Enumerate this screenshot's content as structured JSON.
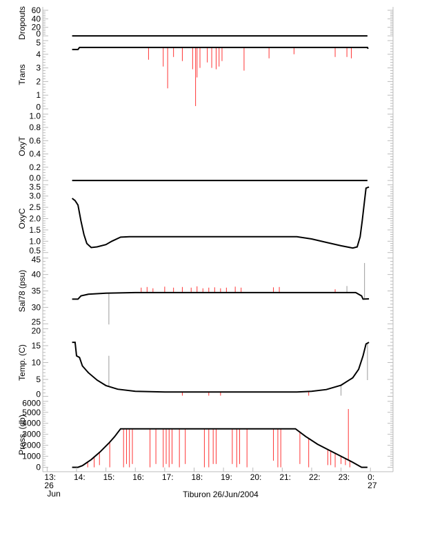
{
  "chart_data": {
    "type": "line",
    "title": "Tiburon 26/Jun/2004",
    "xlabel": "Tiburon 26/Jun/2004",
    "xlim_hours": [
      12.85,
      24.77
    ],
    "xticks": [
      {
        "h": 13,
        "label": "13:",
        "sub": "26",
        "sub2": "Jun"
      },
      {
        "h": 14,
        "label": "14:"
      },
      {
        "h": 15,
        "label": "15:"
      },
      {
        "h": 16,
        "label": "16:"
      },
      {
        "h": 17,
        "label": "17:"
      },
      {
        "h": 18,
        "label": "18:"
      },
      {
        "h": 19,
        "label": "19:"
      },
      {
        "h": 20,
        "label": "20:"
      },
      {
        "h": 21,
        "label": "21:"
      },
      {
        "h": 22,
        "label": "22:"
      },
      {
        "h": 23,
        "label": "23:"
      },
      {
        "h": 24,
        "label": "0:",
        "sub": "27"
      }
    ],
    "panels": [
      {
        "name": "dropouts",
        "ylabel": "Dropouts",
        "ylim": [
          -8,
          68
        ],
        "ticks": [
          0,
          20,
          40,
          60
        ],
        "tick_labels": [
          "0",
          "20",
          "40",
          "60"
        ],
        "line": [
          [
            13.85,
            0
          ],
          [
            23.9,
            0
          ]
        ],
        "spikes": []
      },
      {
        "name": "trans",
        "ylabel": "Trans",
        "ylim": [
          -0.1,
          5.1
        ],
        "ticks": [
          0,
          1,
          2,
          3,
          4,
          5
        ],
        "tick_labels": [
          "0",
          "1",
          "2",
          "3",
          "4",
          "5"
        ],
        "line": [
          [
            13.85,
            4.35
          ],
          [
            14.05,
            4.35
          ],
          [
            14.1,
            4.5
          ],
          [
            23.9,
            4.5
          ],
          [
            23.92,
            4.4
          ]
        ],
        "spikes": [
          [
            16.45,
            3.6
          ],
          [
            16.95,
            3.1
          ],
          [
            17.1,
            1.5
          ],
          [
            17.3,
            3.8
          ],
          [
            17.6,
            3.5
          ],
          [
            17.95,
            2.9
          ],
          [
            18.05,
            0.2
          ],
          [
            18.1,
            2.3
          ],
          [
            18.2,
            3.0
          ],
          [
            18.45,
            3.4
          ],
          [
            18.6,
            3.0
          ],
          [
            18.75,
            2.9
          ],
          [
            18.85,
            3.1
          ],
          [
            18.95,
            3.5
          ],
          [
            19.7,
            2.8
          ],
          [
            20.55,
            3.7
          ],
          [
            21.4,
            4.0
          ],
          [
            22.8,
            3.8
          ],
          [
            23.2,
            3.8
          ],
          [
            23.35,
            3.7
          ]
        ]
      },
      {
        "name": "oxyt",
        "ylabel": "OxyT",
        "ylim": [
          -0.03,
          1.06
        ],
        "ticks": [
          0,
          0.2,
          0.4,
          0.6,
          0.8,
          1.0
        ],
        "tick_labels": [
          "0.0",
          "0.2",
          "0.4",
          "0.6",
          "0.8",
          "1.0"
        ],
        "line": [
          [
            13.85,
            0
          ],
          [
            23.9,
            0
          ]
        ],
        "spikes": []
      },
      {
        "name": "oxyc",
        "ylabel": "OxyC",
        "ylim": [
          0.4,
          3.6
        ],
        "ticks": [
          0.5,
          1.0,
          1.5,
          2.0,
          2.5,
          3.0,
          3.5
        ],
        "tick_labels": [
          "0.5",
          "1.0",
          "1.5",
          "2.0",
          "2.5",
          "3.0",
          "3.5"
        ],
        "line": [
          [
            13.85,
            2.9
          ],
          [
            13.95,
            2.8
          ],
          [
            14.05,
            2.6
          ],
          [
            14.15,
            1.9
          ],
          [
            14.25,
            1.3
          ],
          [
            14.35,
            0.9
          ],
          [
            14.5,
            0.72
          ],
          [
            14.7,
            0.75
          ],
          [
            15.0,
            0.85
          ],
          [
            15.2,
            1.0
          ],
          [
            15.5,
            1.18
          ],
          [
            15.8,
            1.2
          ],
          [
            21.5,
            1.2
          ],
          [
            22.0,
            1.1
          ],
          [
            22.5,
            0.95
          ],
          [
            23.0,
            0.8
          ],
          [
            23.4,
            0.7
          ],
          [
            23.55,
            0.75
          ],
          [
            23.65,
            1.2
          ],
          [
            23.72,
            1.9
          ],
          [
            23.8,
            2.8
          ],
          [
            23.85,
            3.35
          ],
          [
            23.95,
            3.4
          ]
        ],
        "spikes": []
      },
      {
        "name": "sal78",
        "ylabel": "Sal78 (psu)",
        "ylim": [
          24,
          46
        ],
        "ticks": [
          25,
          30,
          35,
          40,
          45
        ],
        "tick_labels": [
          "25",
          "30",
          "35",
          "40",
          "45"
        ],
        "line": [
          [
            13.85,
            32.5
          ],
          [
            14.05,
            32.5
          ],
          [
            14.15,
            33.5
          ],
          [
            14.4,
            34
          ],
          [
            15.0,
            34.3
          ],
          [
            16,
            34.5
          ],
          [
            23.5,
            34.5
          ],
          [
            23.7,
            33.5
          ],
          [
            23.75,
            32.5
          ],
          [
            23.95,
            32.6
          ]
        ],
        "spikes": [
          [
            15.1,
            24.8,
            "g"
          ],
          [
            16.2,
            36
          ],
          [
            16.4,
            36.2
          ],
          [
            16.6,
            35.8
          ],
          [
            17.0,
            36.3
          ],
          [
            17.3,
            36
          ],
          [
            17.6,
            36.2
          ],
          [
            17.9,
            36
          ],
          [
            18.1,
            36.4
          ],
          [
            18.3,
            35.8
          ],
          [
            18.5,
            36
          ],
          [
            18.7,
            36.1
          ],
          [
            18.9,
            35.8
          ],
          [
            19.1,
            36
          ],
          [
            19.4,
            36.3
          ],
          [
            19.6,
            36
          ],
          [
            20.7,
            36.1
          ],
          [
            20.9,
            36.2
          ],
          [
            22.8,
            35.5
          ],
          [
            23.2,
            36.5,
            "g"
          ],
          [
            23.8,
            43.5,
            "g"
          ]
        ]
      },
      {
        "name": "temp",
        "ylabel": "Temp. (C)",
        "ylim": [
          -0.5,
          20.5
        ],
        "ticks": [
          0,
          5,
          10,
          15,
          20
        ],
        "tick_labels": [
          "0",
          "5",
          "10",
          "15",
          "20"
        ],
        "line": [
          [
            13.85,
            16
          ],
          [
            13.95,
            16
          ],
          [
            14.0,
            12
          ],
          [
            14.1,
            11.5
          ],
          [
            14.2,
            9
          ],
          [
            14.4,
            7
          ],
          [
            14.7,
            4.8
          ],
          [
            15.0,
            3.2
          ],
          [
            15.4,
            2.1
          ],
          [
            16.0,
            1.5
          ],
          [
            17,
            1.3
          ],
          [
            21.5,
            1.3
          ],
          [
            22.0,
            1.5
          ],
          [
            22.5,
            2.0
          ],
          [
            23.0,
            3.3
          ],
          [
            23.4,
            5.5
          ],
          [
            23.6,
            8
          ],
          [
            23.75,
            12
          ],
          [
            23.85,
            15.5
          ],
          [
            23.95,
            16
          ]
        ],
        "spikes": [
          [
            15.1,
            12,
            "g"
          ],
          [
            17.6,
            0.2
          ],
          [
            18.5,
            0.2
          ],
          [
            18.9,
            0.2
          ],
          [
            21.9,
            0.2
          ],
          [
            23.0,
            0.2,
            "g"
          ],
          [
            23.9,
            4.8,
            "g"
          ]
        ]
      },
      {
        "name": "press",
        "ylabel": "Press. (db)",
        "ylim": [
          -400,
          6300
        ],
        "ticks": [
          0,
          1000,
          2000,
          3000,
          4000,
          5000,
          6000
        ],
        "tick_labels": [
          "0",
          "1000",
          "2000",
          "3000",
          "4000",
          "5000",
          "6000"
        ],
        "line": [
          [
            13.85,
            0
          ],
          [
            14.05,
            0
          ],
          [
            14.2,
            150
          ],
          [
            14.5,
            700
          ],
          [
            14.8,
            1400
          ],
          [
            15.1,
            2200
          ],
          [
            15.3,
            2800
          ],
          [
            15.5,
            3500
          ],
          [
            21.45,
            3500
          ],
          [
            21.8,
            2800
          ],
          [
            22.2,
            2100
          ],
          [
            22.6,
            1550
          ],
          [
            23.0,
            1000
          ],
          [
            23.4,
            450
          ],
          [
            23.7,
            0
          ],
          [
            23.9,
            0
          ]
        ],
        "spikes": [
          [
            14.38,
            0
          ],
          [
            14.6,
            0
          ],
          [
            14.78,
            200
          ],
          [
            15.13,
            0
          ],
          [
            15.6,
            0
          ],
          [
            15.7,
            300
          ],
          [
            15.8,
            0
          ],
          [
            15.9,
            300
          ],
          [
            16.5,
            0
          ],
          [
            16.7,
            300
          ],
          [
            16.95,
            0
          ],
          [
            17.05,
            300
          ],
          [
            17.15,
            0
          ],
          [
            17.25,
            300
          ],
          [
            17.5,
            0
          ],
          [
            17.7,
            300
          ],
          [
            18.35,
            0
          ],
          [
            18.5,
            0
          ],
          [
            18.65,
            300
          ],
          [
            18.75,
            300
          ],
          [
            19.3,
            300
          ],
          [
            19.45,
            0
          ],
          [
            19.55,
            300
          ],
          [
            19.8,
            0
          ],
          [
            20.7,
            600
          ],
          [
            20.85,
            0
          ],
          [
            20.95,
            0
          ],
          [
            21.6,
            300
          ],
          [
            21.9,
            0
          ],
          [
            22.55,
            200
          ],
          [
            22.65,
            200
          ],
          [
            22.8,
            0
          ],
          [
            23.0,
            300
          ],
          [
            23.15,
            200
          ],
          [
            23.25,
            5300
          ],
          [
            23.3,
            0
          ]
        ]
      }
    ]
  }
}
